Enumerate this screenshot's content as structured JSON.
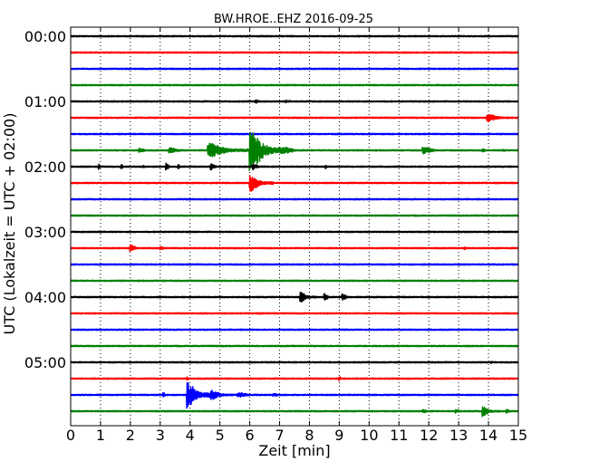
{
  "chart_data": {
    "type": "line",
    "title": "BW.HROE..EHZ 2016-09-25",
    "xlabel": "Zeit  [min]",
    "ylabel": "UTC (Lokalzeit = UTC + 02:00)",
    "xlim": [
      0,
      15
    ],
    "x_ticks": [
      0,
      1,
      2,
      3,
      4,
      5,
      6,
      7,
      8,
      9,
      10,
      11,
      12,
      13,
      14,
      15
    ],
    "y_tick_labels": [
      "00:00",
      "01:00",
      "02:00",
      "03:00",
      "04:00",
      "05:00"
    ],
    "grid": true,
    "trace_interval_minutes": 15,
    "trace_colors": [
      "#000000",
      "#ff0000",
      "#0000ff",
      "#008000"
    ],
    "traces": [
      {
        "start": "00:00",
        "color": "#000000",
        "events": []
      },
      {
        "start": "00:15",
        "color": "#ff0000",
        "events": []
      },
      {
        "start": "00:30",
        "color": "#0000ff",
        "events": []
      },
      {
        "start": "00:45",
        "color": "#008000",
        "events": []
      },
      {
        "start": "01:00",
        "color": "#000000",
        "events": [
          {
            "t": 6.2,
            "amp": 0.35,
            "dur": 0.4
          },
          {
            "t": 7.2,
            "amp": 0.3,
            "dur": 0.6
          }
        ]
      },
      {
        "start": "01:15",
        "color": "#ff0000",
        "events": [
          {
            "t": 13.95,
            "amp": 0.9,
            "dur": 0.9
          }
        ]
      },
      {
        "start": "01:30",
        "color": "#0000ff",
        "events": [
          {
            "t": 6.0,
            "amp": 0.25,
            "dur": 0.5
          }
        ]
      },
      {
        "start": "01:45",
        "color": "#008000",
        "events": [
          {
            "t": 2.3,
            "amp": 0.5,
            "dur": 0.5
          },
          {
            "t": 3.3,
            "amp": 0.55,
            "dur": 0.9
          },
          {
            "t": 4.6,
            "amp": 1.6,
            "dur": 1.4
          },
          {
            "t": 6.0,
            "amp": 3.8,
            "dur": 1.3
          },
          {
            "t": 7.3,
            "amp": 0.5,
            "dur": 0.6
          },
          {
            "t": 11.8,
            "amp": 0.7,
            "dur": 0.9
          },
          {
            "t": 13.8,
            "amp": 0.35,
            "dur": 0.3
          },
          {
            "t": 14.5,
            "amp": 0.25,
            "dur": 0.3
          }
        ]
      },
      {
        "start": "02:00",
        "color": "#000000",
        "events": [
          {
            "t": 0.95,
            "amp": 0.5,
            "dur": 0.1
          },
          {
            "t": 1.7,
            "amp": 0.55,
            "dur": 0.12
          },
          {
            "t": 2.45,
            "amp": 0.25,
            "dur": 0.15
          },
          {
            "t": 3.2,
            "amp": 0.7,
            "dur": 0.3
          },
          {
            "t": 3.6,
            "amp": 0.5,
            "dur": 0.2
          },
          {
            "t": 4.7,
            "amp": 0.7,
            "dur": 0.4
          },
          {
            "t": 6.1,
            "amp": 0.6,
            "dur": 0.5
          },
          {
            "t": 8.55,
            "amp": 0.4,
            "dur": 0.1
          }
        ]
      },
      {
        "start": "02:15",
        "color": "#ff0000",
        "events": [
          {
            "t": 6.0,
            "amp": 1.8,
            "dur": 0.8
          }
        ]
      },
      {
        "start": "02:30",
        "color": "#0000ff",
        "events": []
      },
      {
        "start": "02:45",
        "color": "#008000",
        "events": []
      },
      {
        "start": "03:00",
        "color": "#000000",
        "events": []
      },
      {
        "start": "03:15",
        "color": "#ff0000",
        "events": [
          {
            "t": 2.0,
            "amp": 0.7,
            "dur": 0.5
          },
          {
            "t": 3.0,
            "amp": 0.35,
            "dur": 0.4
          },
          {
            "t": 13.2,
            "amp": 0.3,
            "dur": 0.1
          }
        ]
      },
      {
        "start": "03:30",
        "color": "#0000ff",
        "events": []
      },
      {
        "start": "03:45",
        "color": "#008000",
        "events": []
      },
      {
        "start": "04:00",
        "color": "#000000",
        "events": [
          {
            "t": 7.7,
            "amp": 1.2,
            "dur": 0.5
          },
          {
            "t": 8.5,
            "amp": 0.8,
            "dur": 0.3
          },
          {
            "t": 9.1,
            "amp": 0.7,
            "dur": 0.4
          }
        ]
      },
      {
        "start": "04:15",
        "color": "#ff0000",
        "events": []
      },
      {
        "start": "04:30",
        "color": "#0000ff",
        "events": []
      },
      {
        "start": "04:45",
        "color": "#008000",
        "events": []
      },
      {
        "start": "05:00",
        "color": "#000000",
        "events": [
          {
            "t": 14.1,
            "amp": 0.25,
            "dur": 0.2
          }
        ]
      },
      {
        "start": "05:15",
        "color": "#ff0000",
        "events": [
          {
            "t": 3.9,
            "amp": 0.35,
            "dur": 0.2
          },
          {
            "t": 9.0,
            "amp": 0.6,
            "dur": 0.1
          }
        ]
      },
      {
        "start": "05:30",
        "color": "#0000ff",
        "events": [
          {
            "t": 3.1,
            "amp": 0.6,
            "dur": 0.2
          },
          {
            "t": 3.9,
            "amp": 2.8,
            "dur": 0.8
          },
          {
            "t": 4.7,
            "amp": 1.0,
            "dur": 0.8
          },
          {
            "t": 5.6,
            "amp": 0.5,
            "dur": 1.0
          },
          {
            "t": 6.8,
            "amp": 0.3,
            "dur": 0.5
          }
        ]
      },
      {
        "start": "05:45",
        "color": "#008000",
        "events": [
          {
            "t": 11.8,
            "amp": 0.4,
            "dur": 0.4
          },
          {
            "t": 12.9,
            "amp": 0.35,
            "dur": 0.4
          },
          {
            "t": 13.8,
            "amp": 1.0,
            "dur": 0.6
          },
          {
            "t": 14.6,
            "amp": 0.4,
            "dur": 0.3
          }
        ]
      }
    ]
  }
}
